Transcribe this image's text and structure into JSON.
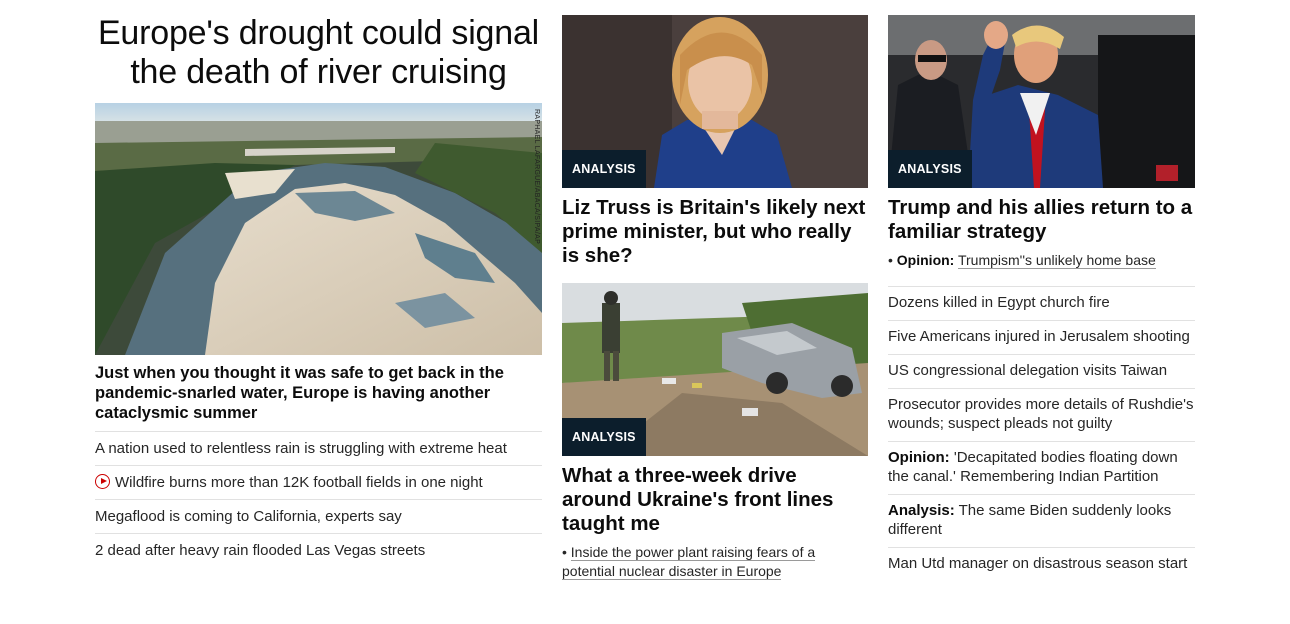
{
  "lead": {
    "headline": "Europe's drought could signal the death of river cruising",
    "photo_credit": "RAPHAEL LAFARGUE/ABACA/SIPA/AP",
    "subheadline": "Just when you thought it was safe to get back in the pandemic-snarled water, Europe is having another cataclysmic summer",
    "related": [
      {
        "text": "A nation used to relentless rain is struggling with extreme heat",
        "icon": null
      },
      {
        "text": "Wildfire burns more than 12K football fields in one night",
        "icon": "play-video-icon"
      },
      {
        "text": "Megaflood is coming to California, experts say",
        "icon": null
      },
      {
        "text": "2 dead after heavy rain flooded Las Vegas streets",
        "icon": null
      }
    ]
  },
  "middle": {
    "card1": {
      "badge": "ANALYSIS",
      "title": "Liz Truss is Britain's likely next prime minister, but who really is she?"
    },
    "card2": {
      "badge": "ANALYSIS",
      "title": "What a three-week drive around Ukraine's front lines taught me",
      "bullet": "Inside the power plant raising fears of a potential nuclear disaster in Europe"
    }
  },
  "right": {
    "card": {
      "badge": "ANALYSIS",
      "title": "Trump and his allies return to a familiar strategy",
      "bullet_label": "Opinion:",
      "bullet_text": "Trumpism''s unlikely home base"
    },
    "list": [
      {
        "label": "",
        "text": "Dozens killed in Egypt church fire"
      },
      {
        "label": "",
        "text": "Five Americans injured in Jerusalem shooting"
      },
      {
        "label": "",
        "text": "US congressional delegation visits Taiwan"
      },
      {
        "label": "",
        "text": "Prosecutor provides more details of Rushdie's wounds; suspect pleads not guilty"
      },
      {
        "label": "Opinion:",
        "text": "'Decapitated bodies floating down the canal.' Remembering Indian Partition"
      },
      {
        "label": "Analysis:",
        "text": "The same Biden suddenly looks different"
      },
      {
        "label": "",
        "text": "Man Utd manager on disastrous season start"
      }
    ]
  },
  "colors": {
    "badge_bg": "#0c1e2c",
    "badge_text": "#ffffff",
    "video_icon": "#cc0000",
    "divider": "#e1e1e1"
  }
}
